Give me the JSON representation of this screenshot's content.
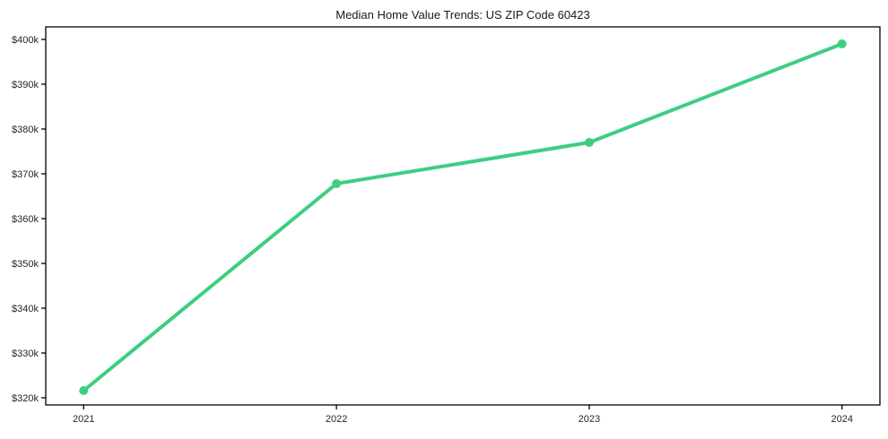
{
  "chart_data": {
    "type": "line",
    "title": "Median Home Value Trends: US ZIP Code 60423",
    "series_name": "Median Home Value",
    "x": [
      2021,
      2022,
      2023,
      2024
    ],
    "values": [
      321600,
      367800,
      377000,
      399000
    ],
    "x_tick_labels": [
      "2021",
      "2022",
      "2023",
      "2024"
    ],
    "y_tick_values": [
      320000,
      330000,
      340000,
      350000,
      360000,
      370000,
      380000,
      390000,
      400000
    ],
    "y_tick_labels": [
      "$320k",
      "$330k",
      "$340k",
      "$350k",
      "$360k",
      "$370k",
      "$380k",
      "$390k",
      "$400k"
    ],
    "xlim": [
      2020.85,
      2024.15
    ],
    "ylim": [
      318400,
      402800
    ],
    "grid": false,
    "legend": "none",
    "line_color": "#3dce81",
    "marker": "circle",
    "line_width": 4,
    "marker_radius": 5,
    "background": "#ffffff",
    "spine_color": "#000000",
    "tick_color": "#000000",
    "tick_label_color": "#262626",
    "title_color": "#1a1a1a"
  }
}
